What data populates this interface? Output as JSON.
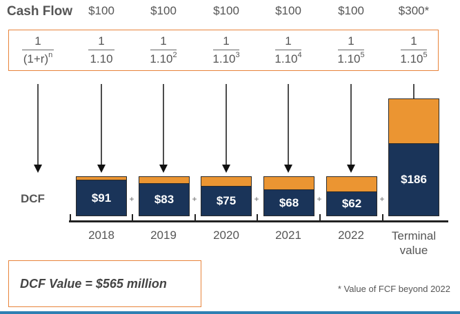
{
  "header": {
    "cash_flow_label": "Cash Flow",
    "cash_flows": [
      "$100",
      "$100",
      "$100",
      "$100",
      "$100",
      "$300*"
    ]
  },
  "discount_factors": [
    {
      "numerator": "1",
      "base": "(1+r)",
      "exponent": "n"
    },
    {
      "numerator": "1",
      "base": "1.10",
      "exponent": ""
    },
    {
      "numerator": "1",
      "base": "1.10",
      "exponent": "2"
    },
    {
      "numerator": "1",
      "base": "1.10",
      "exponent": "3"
    },
    {
      "numerator": "1",
      "base": "1.10",
      "exponent": "4"
    },
    {
      "numerator": "1",
      "base": "1.10",
      "exponent": "5"
    },
    {
      "numerator": "1",
      "base": "1.10",
      "exponent": "5"
    }
  ],
  "dcf": {
    "label": "DCF",
    "plus_sign": "+",
    "bars": [
      {
        "value": "$91",
        "present_value": 91,
        "cash_flow": 100
      },
      {
        "value": "$83",
        "present_value": 83,
        "cash_flow": 100
      },
      {
        "value": "$75",
        "present_value": 75,
        "cash_flow": 100
      },
      {
        "value": "$68",
        "present_value": 68,
        "cash_flow": 100
      },
      {
        "value": "$62",
        "present_value": 62,
        "cash_flow": 100
      },
      {
        "value": "$186",
        "present_value": 186,
        "cash_flow": 300
      }
    ]
  },
  "axis": {
    "years": [
      "2018",
      "2019",
      "2020",
      "2021",
      "2022"
    ],
    "terminal_line1": "Terminal",
    "terminal_line2": "value"
  },
  "summary": {
    "dcf_value": "DCF Value  =  $565 million",
    "footnote": "* Value of FCF beyond 2022"
  },
  "colors": {
    "accent_orange": "#eb9532",
    "navy": "#1a3459",
    "box_border": "#e8833a",
    "bottom_rule": "#2e7fb3"
  }
}
